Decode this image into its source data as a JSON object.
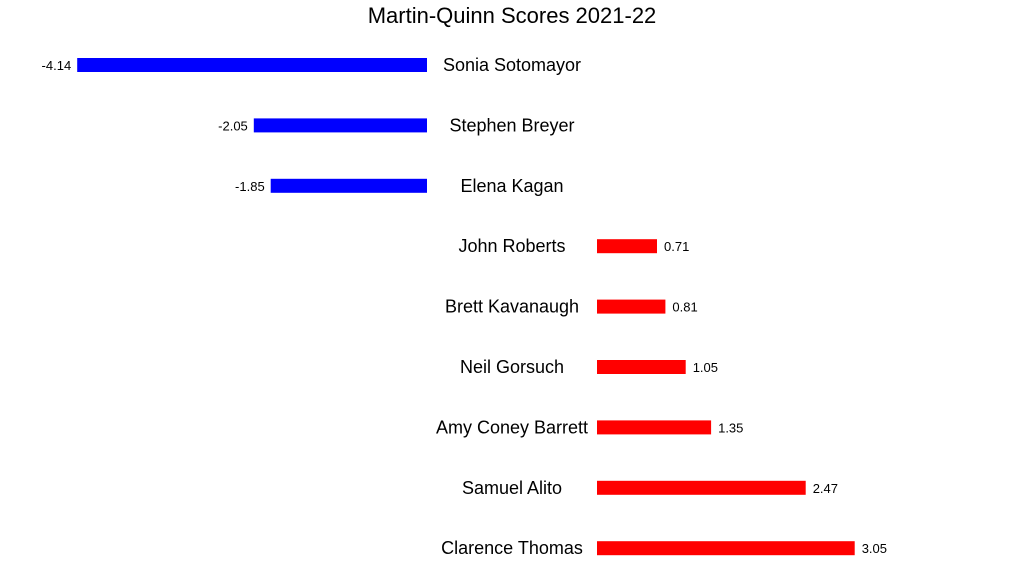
{
  "chart_data": {
    "type": "bar",
    "orientation": "horizontal",
    "title": "Martin-Quinn Scores 2021-22",
    "categories": [
      "Sonia Sotomayor",
      "Stephen Breyer",
      "Elena Kagan",
      "John Roberts",
      "Brett Kavanaugh",
      "Neil Gorsuch",
      "Amy Coney Barrett",
      "Samuel Alito",
      "Clarence Thomas"
    ],
    "values": [
      -4.14,
      -2.05,
      -1.85,
      0.71,
      0.81,
      1.05,
      1.35,
      2.47,
      3.05
    ],
    "value_labels": [
      "-4.14",
      "-2.05",
      "-1.85",
      "0.71",
      "0.81",
      "1.05",
      "1.35",
      "2.47",
      "3.05"
    ],
    "colors": {
      "negative": "#0000ff",
      "positive": "#ff0000"
    },
    "grid": false,
    "legend": "none"
  }
}
